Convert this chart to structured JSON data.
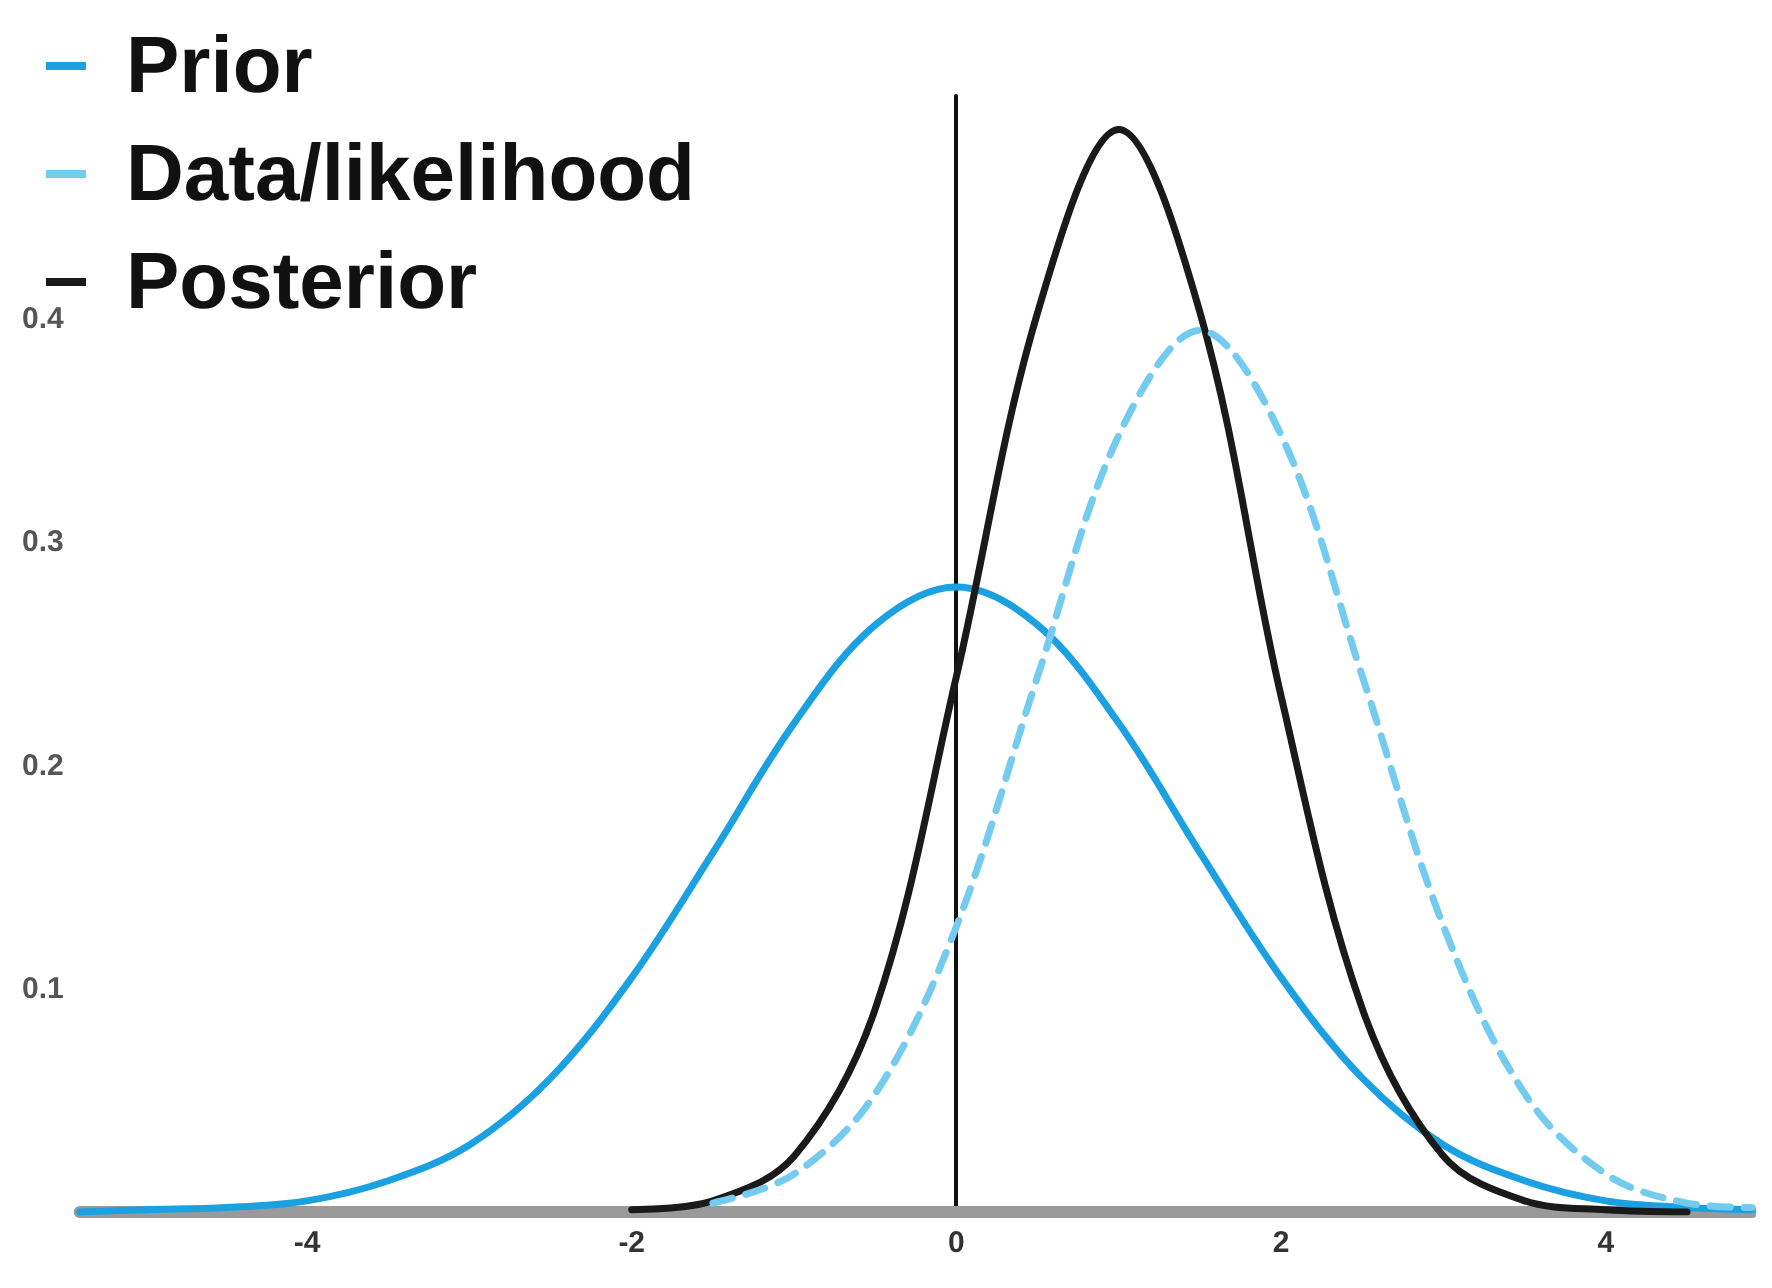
{
  "chart_data": {
    "type": "line",
    "xlim": [
      -5.4,
      4.9
    ],
    "xticks": [
      -4,
      -2,
      0,
      2,
      4
    ],
    "ylim": [
      0,
      0.5
    ],
    "yticks": [
      0.1,
      0.2,
      0.3,
      0.4
    ],
    "legend": "top left",
    "marker": "none",
    "series": [
      {
        "name": "Prior",
        "color": "#1ba1e2",
        "line_style": "solid",
        "x": [
          -5.4,
          -5,
          -4.5,
          -4,
          -3.5,
          -3,
          -2.5,
          -2,
          -1.5,
          -1,
          -0.5,
          0,
          0.5,
          1,
          1.5,
          2,
          2.5,
          3,
          3.5,
          4,
          4.5,
          4.9
        ],
        "values": [
          0,
          0.001,
          0.002,
          0.005,
          0.014,
          0.03,
          0.06,
          0.105,
          0.161,
          0.219,
          0.263,
          0.28,
          0.263,
          0.219,
          0.161,
          0.105,
          0.06,
          0.03,
          0.014,
          0.005,
          0.002,
          0.001
        ]
      },
      {
        "name": "Data/likelihood",
        "color": "#74cbf0",
        "line_style": "dashed",
        "x": [
          -1.5,
          -1,
          -0.5,
          0,
          0.5,
          1,
          1.5,
          2,
          2.5,
          3,
          3.5,
          4,
          4.5,
          4.9
        ],
        "values": [
          0.004,
          0.017,
          0.053,
          0.128,
          0.24,
          0.348,
          0.395,
          0.348,
          0.24,
          0.128,
          0.053,
          0.017,
          0.004,
          0.002
        ]
      },
      {
        "name": "Posterior",
        "color": "#1a1a1a",
        "line_style": "solid",
        "x": [
          -2,
          -1.5,
          -1,
          -0.5,
          0,
          0.5,
          1,
          1.5,
          2,
          2.5,
          3,
          3.5,
          4,
          4.5
        ],
        "values": [
          0.001,
          0.005,
          0.025,
          0.091,
          0.24,
          0.403,
          0.485,
          0.403,
          0.231,
          0.091,
          0.025,
          0.005,
          0.001,
          0
        ]
      }
    ]
  }
}
